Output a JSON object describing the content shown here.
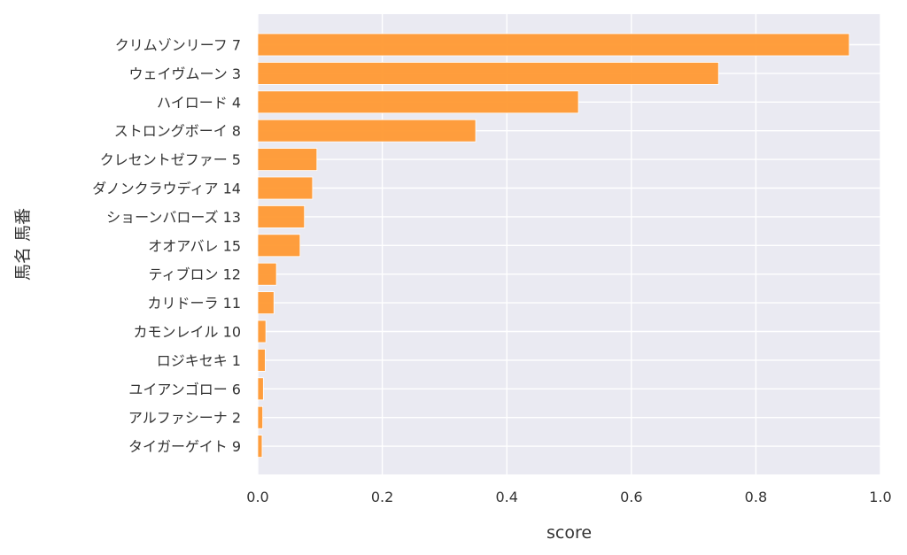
{
  "chart_data": {
    "type": "bar",
    "orientation": "horizontal",
    "xlabel": "score",
    "ylabel": "馬名 馬番",
    "xlim": [
      0,
      1.0
    ],
    "xticks": [
      "0.0",
      "0.2",
      "0.4",
      "0.6",
      "0.8",
      "1.0"
    ],
    "grid": true,
    "bar_color": "#FF9933",
    "background": "#EAEAF2",
    "categories": [
      "クリムゾンリーフ 7",
      "ウェイヴムーン 3",
      "ハイロード 4",
      "ストロングボーイ 8",
      "クレセントゼファー 5",
      "ダノンクラウディア 14",
      "ショーンバローズ 13",
      "オオアバレ 15",
      "ティブロン 12",
      "カリドーラ 11",
      "カモンレイル 10",
      "ロジキセキ 1",
      "ユイアンゴロー 6",
      "アルファシーナ 2",
      "タイガーゲイト 9"
    ],
    "values": [
      0.95,
      0.74,
      0.515,
      0.35,
      0.095,
      0.088,
      0.075,
      0.068,
      0.03,
      0.026,
      0.013,
      0.012,
      0.009,
      0.008,
      0.007
    ]
  }
}
